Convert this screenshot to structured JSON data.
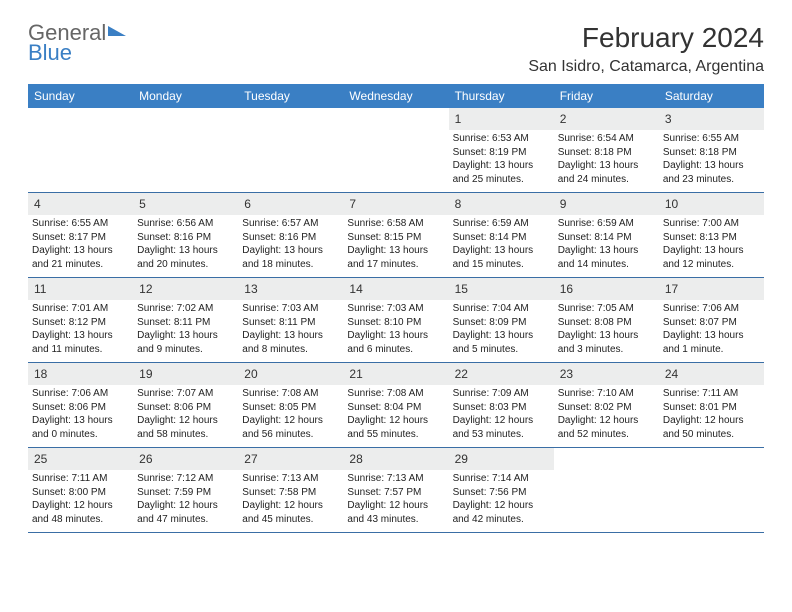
{
  "logo": {
    "line1": "General",
    "line2": "Blue"
  },
  "title": "February 2024",
  "location": "San Isidro, Catamarca, Argentina",
  "colors": {
    "header_bg": "#3a7fc4",
    "header_text": "#ffffff",
    "daynum_bg": "#eceded",
    "border": "#3a6ea5",
    "text": "#222222"
  },
  "layout": {
    "columns": 7,
    "cell_font_size": 10,
    "daynum_font_size": 12,
    "weekday_font_size": 12
  },
  "weekdays": [
    "Sunday",
    "Monday",
    "Tuesday",
    "Wednesday",
    "Thursday",
    "Friday",
    "Saturday"
  ],
  "weeks": [
    [
      null,
      null,
      null,
      null,
      {
        "n": "1",
        "sr": "6:53 AM",
        "ss": "8:19 PM",
        "dl": "13 hours and 25 minutes."
      },
      {
        "n": "2",
        "sr": "6:54 AM",
        "ss": "8:18 PM",
        "dl": "13 hours and 24 minutes."
      },
      {
        "n": "3",
        "sr": "6:55 AM",
        "ss": "8:18 PM",
        "dl": "13 hours and 23 minutes."
      }
    ],
    [
      {
        "n": "4",
        "sr": "6:55 AM",
        "ss": "8:17 PM",
        "dl": "13 hours and 21 minutes."
      },
      {
        "n": "5",
        "sr": "6:56 AM",
        "ss": "8:16 PM",
        "dl": "13 hours and 20 minutes."
      },
      {
        "n": "6",
        "sr": "6:57 AM",
        "ss": "8:16 PM",
        "dl": "13 hours and 18 minutes."
      },
      {
        "n": "7",
        "sr": "6:58 AM",
        "ss": "8:15 PM",
        "dl": "13 hours and 17 minutes."
      },
      {
        "n": "8",
        "sr": "6:59 AM",
        "ss": "8:14 PM",
        "dl": "13 hours and 15 minutes."
      },
      {
        "n": "9",
        "sr": "6:59 AM",
        "ss": "8:14 PM",
        "dl": "13 hours and 14 minutes."
      },
      {
        "n": "10",
        "sr": "7:00 AM",
        "ss": "8:13 PM",
        "dl": "13 hours and 12 minutes."
      }
    ],
    [
      {
        "n": "11",
        "sr": "7:01 AM",
        "ss": "8:12 PM",
        "dl": "13 hours and 11 minutes."
      },
      {
        "n": "12",
        "sr": "7:02 AM",
        "ss": "8:11 PM",
        "dl": "13 hours and 9 minutes."
      },
      {
        "n": "13",
        "sr": "7:03 AM",
        "ss": "8:11 PM",
        "dl": "13 hours and 8 minutes."
      },
      {
        "n": "14",
        "sr": "7:03 AM",
        "ss": "8:10 PM",
        "dl": "13 hours and 6 minutes."
      },
      {
        "n": "15",
        "sr": "7:04 AM",
        "ss": "8:09 PM",
        "dl": "13 hours and 5 minutes."
      },
      {
        "n": "16",
        "sr": "7:05 AM",
        "ss": "8:08 PM",
        "dl": "13 hours and 3 minutes."
      },
      {
        "n": "17",
        "sr": "7:06 AM",
        "ss": "8:07 PM",
        "dl": "13 hours and 1 minute."
      }
    ],
    [
      {
        "n": "18",
        "sr": "7:06 AM",
        "ss": "8:06 PM",
        "dl": "13 hours and 0 minutes."
      },
      {
        "n": "19",
        "sr": "7:07 AM",
        "ss": "8:06 PM",
        "dl": "12 hours and 58 minutes."
      },
      {
        "n": "20",
        "sr": "7:08 AM",
        "ss": "8:05 PM",
        "dl": "12 hours and 56 minutes."
      },
      {
        "n": "21",
        "sr": "7:08 AM",
        "ss": "8:04 PM",
        "dl": "12 hours and 55 minutes."
      },
      {
        "n": "22",
        "sr": "7:09 AM",
        "ss": "8:03 PM",
        "dl": "12 hours and 53 minutes."
      },
      {
        "n": "23",
        "sr": "7:10 AM",
        "ss": "8:02 PM",
        "dl": "12 hours and 52 minutes."
      },
      {
        "n": "24",
        "sr": "7:11 AM",
        "ss": "8:01 PM",
        "dl": "12 hours and 50 minutes."
      }
    ],
    [
      {
        "n": "25",
        "sr": "7:11 AM",
        "ss": "8:00 PM",
        "dl": "12 hours and 48 minutes."
      },
      {
        "n": "26",
        "sr": "7:12 AM",
        "ss": "7:59 PM",
        "dl": "12 hours and 47 minutes."
      },
      {
        "n": "27",
        "sr": "7:13 AM",
        "ss": "7:58 PM",
        "dl": "12 hours and 45 minutes."
      },
      {
        "n": "28",
        "sr": "7:13 AM",
        "ss": "7:57 PM",
        "dl": "12 hours and 43 minutes."
      },
      {
        "n": "29",
        "sr": "7:14 AM",
        "ss": "7:56 PM",
        "dl": "12 hours and 42 minutes."
      },
      null,
      null
    ]
  ],
  "labels": {
    "sunrise": "Sunrise:",
    "sunset": "Sunset:",
    "daylight": "Daylight:"
  }
}
